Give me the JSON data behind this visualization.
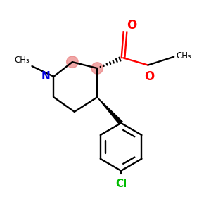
{
  "bg_color": "#ffffff",
  "atom_colors": {
    "N": "#0000dd",
    "O": "#ff0000",
    "Cl": "#00bb00",
    "C": "#000000"
  },
  "chiral_circle_color": "#e87878",
  "chiral_circle_alpha": 0.65,
  "figsize": [
    3.0,
    3.0
  ],
  "dpi": 100,
  "lw": 1.7
}
